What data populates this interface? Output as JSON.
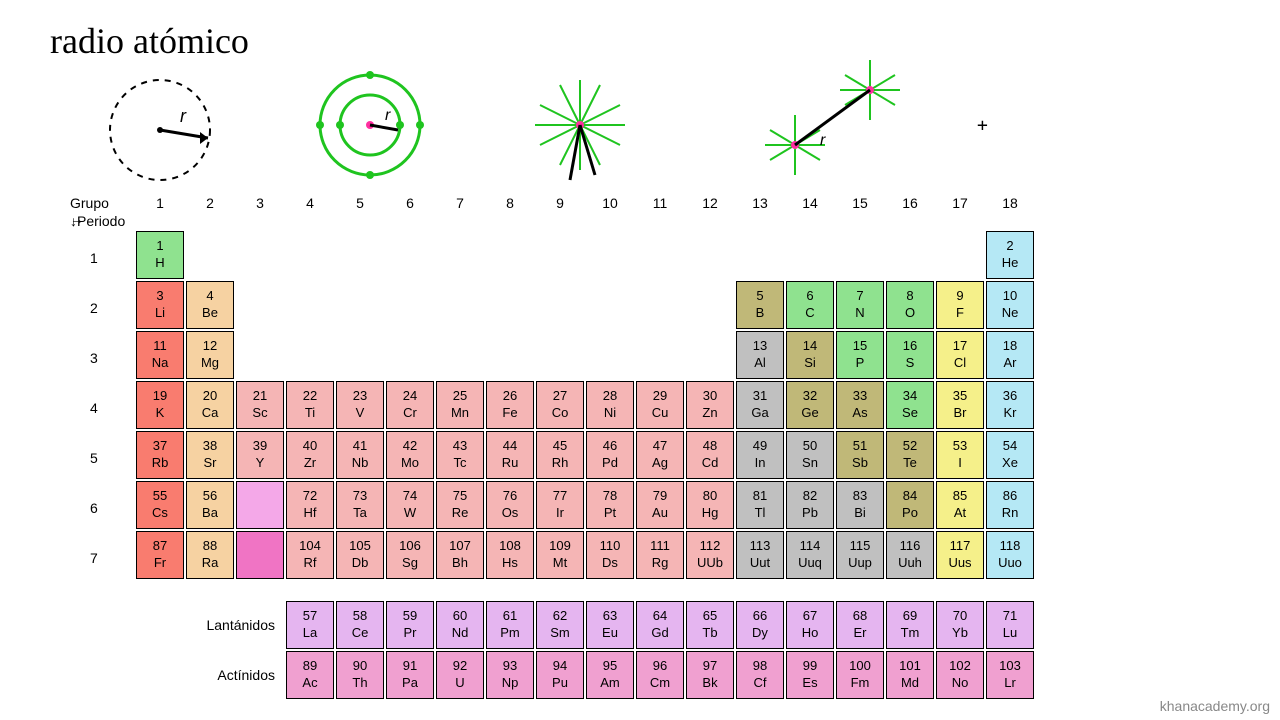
{
  "title": "radio atómico",
  "axis": {
    "grupo": "Grupo →",
    "periodo": "↓Periodo"
  },
  "groups": [
    "1",
    "2",
    "3",
    "4",
    "5",
    "6",
    "7",
    "8",
    "9",
    "10",
    "11",
    "12",
    "13",
    "14",
    "15",
    "16",
    "17",
    "18"
  ],
  "periods": [
    "1",
    "2",
    "3",
    "4",
    "5",
    "6",
    "7"
  ],
  "fblock_labels": {
    "lan": "Lantánidos",
    "act": "Actínidos"
  },
  "watermark": "khanacademy.org",
  "colors": {
    "alkali": "#f97c6f",
    "alkaline": "#f6d2a2",
    "transition": "#f5b5b5",
    "lanth_placeholder": "#f4a8e8",
    "act_placeholder": "#f074c4",
    "metalloid": "#c0b878",
    "posttrans": "#c0c0c0",
    "nonmetal_green": "#8fe28f",
    "halogen": "#f5f08a",
    "noble": "#b5e8f5",
    "lanth": "#e5b5f0",
    "act": "#f0a0d0",
    "H": "#8fe28f",
    "sketch_green": "#1fc41f",
    "sketch_pink": "#ff2fa0"
  },
  "rows": [
    [
      {
        "n": "1",
        "s": "H",
        "c": "H"
      },
      null,
      null,
      null,
      null,
      null,
      null,
      null,
      null,
      null,
      null,
      null,
      null,
      null,
      null,
      null,
      null,
      {
        "n": "2",
        "s": "He",
        "c": "noble"
      }
    ],
    [
      {
        "n": "3",
        "s": "Li",
        "c": "alkali"
      },
      {
        "n": "4",
        "s": "Be",
        "c": "alkaline"
      },
      null,
      null,
      null,
      null,
      null,
      null,
      null,
      null,
      null,
      null,
      {
        "n": "5",
        "s": "B",
        "c": "metalloid"
      },
      {
        "n": "6",
        "s": "C",
        "c": "nonmetal_green"
      },
      {
        "n": "7",
        "s": "N",
        "c": "nonmetal_green"
      },
      {
        "n": "8",
        "s": "O",
        "c": "nonmetal_green"
      },
      {
        "n": "9",
        "s": "F",
        "c": "halogen"
      },
      {
        "n": "10",
        "s": "Ne",
        "c": "noble"
      }
    ],
    [
      {
        "n": "11",
        "s": "Na",
        "c": "alkali"
      },
      {
        "n": "12",
        "s": "Mg",
        "c": "alkaline"
      },
      null,
      null,
      null,
      null,
      null,
      null,
      null,
      null,
      null,
      null,
      {
        "n": "13",
        "s": "Al",
        "c": "posttrans"
      },
      {
        "n": "14",
        "s": "Si",
        "c": "metalloid"
      },
      {
        "n": "15",
        "s": "P",
        "c": "nonmetal_green"
      },
      {
        "n": "16",
        "s": "S",
        "c": "nonmetal_green"
      },
      {
        "n": "17",
        "s": "Cl",
        "c": "halogen"
      },
      {
        "n": "18",
        "s": "Ar",
        "c": "noble"
      }
    ],
    [
      {
        "n": "19",
        "s": "K",
        "c": "alkali"
      },
      {
        "n": "20",
        "s": "Ca",
        "c": "alkaline"
      },
      {
        "n": "21",
        "s": "Sc",
        "c": "transition"
      },
      {
        "n": "22",
        "s": "Ti",
        "c": "transition"
      },
      {
        "n": "23",
        "s": "V",
        "c": "transition"
      },
      {
        "n": "24",
        "s": "Cr",
        "c": "transition"
      },
      {
        "n": "25",
        "s": "Mn",
        "c": "transition"
      },
      {
        "n": "26",
        "s": "Fe",
        "c": "transition"
      },
      {
        "n": "27",
        "s": "Co",
        "c": "transition"
      },
      {
        "n": "28",
        "s": "Ni",
        "c": "transition"
      },
      {
        "n": "29",
        "s": "Cu",
        "c": "transition"
      },
      {
        "n": "30",
        "s": "Zn",
        "c": "transition"
      },
      {
        "n": "31",
        "s": "Ga",
        "c": "posttrans"
      },
      {
        "n": "32",
        "s": "Ge",
        "c": "metalloid"
      },
      {
        "n": "33",
        "s": "As",
        "c": "metalloid"
      },
      {
        "n": "34",
        "s": "Se",
        "c": "nonmetal_green"
      },
      {
        "n": "35",
        "s": "Br",
        "c": "halogen"
      },
      {
        "n": "36",
        "s": "Kr",
        "c": "noble"
      }
    ],
    [
      {
        "n": "37",
        "s": "Rb",
        "c": "alkali"
      },
      {
        "n": "38",
        "s": "Sr",
        "c": "alkaline"
      },
      {
        "n": "39",
        "s": "Y",
        "c": "transition"
      },
      {
        "n": "40",
        "s": "Zr",
        "c": "transition"
      },
      {
        "n": "41",
        "s": "Nb",
        "c": "transition"
      },
      {
        "n": "42",
        "s": "Mo",
        "c": "transition"
      },
      {
        "n": "43",
        "s": "Tc",
        "c": "transition"
      },
      {
        "n": "44",
        "s": "Ru",
        "c": "transition"
      },
      {
        "n": "45",
        "s": "Rh",
        "c": "transition"
      },
      {
        "n": "46",
        "s": "Pd",
        "c": "transition"
      },
      {
        "n": "47",
        "s": "Ag",
        "c": "transition"
      },
      {
        "n": "48",
        "s": "Cd",
        "c": "transition"
      },
      {
        "n": "49",
        "s": "In",
        "c": "posttrans"
      },
      {
        "n": "50",
        "s": "Sn",
        "c": "posttrans"
      },
      {
        "n": "51",
        "s": "Sb",
        "c": "metalloid"
      },
      {
        "n": "52",
        "s": "Te",
        "c": "metalloid"
      },
      {
        "n": "53",
        "s": "I",
        "c": "halogen"
      },
      {
        "n": "54",
        "s": "Xe",
        "c": "noble"
      }
    ],
    [
      {
        "n": "55",
        "s": "Cs",
        "c": "alkali"
      },
      {
        "n": "56",
        "s": "Ba",
        "c": "alkaline"
      },
      {
        "n": "",
        "s": "",
        "c": "lanth_placeholder"
      },
      {
        "n": "72",
        "s": "Hf",
        "c": "transition"
      },
      {
        "n": "73",
        "s": "Ta",
        "c": "transition"
      },
      {
        "n": "74",
        "s": "W",
        "c": "transition"
      },
      {
        "n": "75",
        "s": "Re",
        "c": "transition"
      },
      {
        "n": "76",
        "s": "Os",
        "c": "transition"
      },
      {
        "n": "77",
        "s": "Ir",
        "c": "transition"
      },
      {
        "n": "78",
        "s": "Pt",
        "c": "transition"
      },
      {
        "n": "79",
        "s": "Au",
        "c": "transition"
      },
      {
        "n": "80",
        "s": "Hg",
        "c": "transition"
      },
      {
        "n": "81",
        "s": "Tl",
        "c": "posttrans"
      },
      {
        "n": "82",
        "s": "Pb",
        "c": "posttrans"
      },
      {
        "n": "83",
        "s": "Bi",
        "c": "posttrans"
      },
      {
        "n": "84",
        "s": "Po",
        "c": "metalloid"
      },
      {
        "n": "85",
        "s": "At",
        "c": "halogen"
      },
      {
        "n": "86",
        "s": "Rn",
        "c": "noble"
      }
    ],
    [
      {
        "n": "87",
        "s": "Fr",
        "c": "alkali"
      },
      {
        "n": "88",
        "s": "Ra",
        "c": "alkaline"
      },
      {
        "n": "",
        "s": "",
        "c": "act_placeholder"
      },
      {
        "n": "104",
        "s": "Rf",
        "c": "transition"
      },
      {
        "n": "105",
        "s": "Db",
        "c": "transition"
      },
      {
        "n": "106",
        "s": "Sg",
        "c": "transition"
      },
      {
        "n": "107",
        "s": "Bh",
        "c": "transition"
      },
      {
        "n": "108",
        "s": "Hs",
        "c": "transition"
      },
      {
        "n": "109",
        "s": "Mt",
        "c": "transition"
      },
      {
        "n": "110",
        "s": "Ds",
        "c": "transition"
      },
      {
        "n": "111",
        "s": "Rg",
        "c": "transition"
      },
      {
        "n": "112",
        "s": "UUb",
        "c": "transition"
      },
      {
        "n": "113",
        "s": "Uut",
        "c": "posttrans"
      },
      {
        "n": "114",
        "s": "Uuq",
        "c": "posttrans"
      },
      {
        "n": "115",
        "s": "Uup",
        "c": "posttrans"
      },
      {
        "n": "116",
        "s": "Uuh",
        "c": "posttrans"
      },
      {
        "n": "117",
        "s": "Uus",
        "c": "halogen"
      },
      {
        "n": "118",
        "s": "Uuo",
        "c": "noble"
      }
    ]
  ],
  "lanth": [
    {
      "n": "57",
      "s": "La"
    },
    {
      "n": "58",
      "s": "Ce"
    },
    {
      "n": "59",
      "s": "Pr"
    },
    {
      "n": "60",
      "s": "Nd"
    },
    {
      "n": "61",
      "s": "Pm"
    },
    {
      "n": "62",
      "s": "Sm"
    },
    {
      "n": "63",
      "s": "Eu"
    },
    {
      "n": "64",
      "s": "Gd"
    },
    {
      "n": "65",
      "s": "Tb"
    },
    {
      "n": "66",
      "s": "Dy"
    },
    {
      "n": "67",
      "s": "Ho"
    },
    {
      "n": "68",
      "s": "Er"
    },
    {
      "n": "69",
      "s": "Tm"
    },
    {
      "n": "70",
      "s": "Yb"
    },
    {
      "n": "71",
      "s": "Lu"
    }
  ],
  "act": [
    {
      "n": "89",
      "s": "Ac"
    },
    {
      "n": "90",
      "s": "Th"
    },
    {
      "n": "91",
      "s": "Pa"
    },
    {
      "n": "92",
      "s": "U"
    },
    {
      "n": "93",
      "s": "Np"
    },
    {
      "n": "94",
      "s": "Pu"
    },
    {
      "n": "95",
      "s": "Am"
    },
    {
      "n": "96",
      "s": "Cm"
    },
    {
      "n": "97",
      "s": "Bk"
    },
    {
      "n": "98",
      "s": "Cf"
    },
    {
      "n": "99",
      "s": "Es"
    },
    {
      "n": "100",
      "s": "Fm"
    },
    {
      "n": "101",
      "s": "Md"
    },
    {
      "n": "102",
      "s": "No"
    },
    {
      "n": "103",
      "s": "Lr"
    }
  ]
}
